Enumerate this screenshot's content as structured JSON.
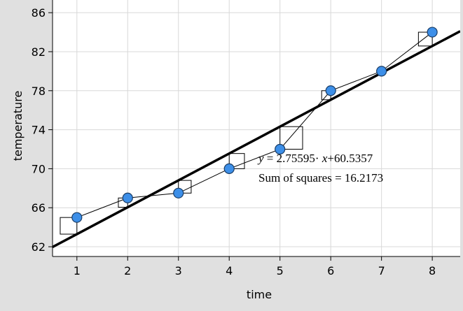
{
  "chart_data": {
    "type": "scatter",
    "x_label": "time",
    "y_label": "temperature",
    "x": [
      1,
      2,
      3,
      4,
      5,
      6,
      7,
      8
    ],
    "values": [
      65,
      67,
      67.5,
      70,
      72,
      78,
      80,
      84
    ],
    "color": "#3d8fe8",
    "xlim": [
      0.52,
      8.55
    ],
    "ylim": [
      61,
      87.3
    ],
    "xticks": [
      1,
      2,
      3,
      4,
      5,
      6,
      7,
      8
    ],
    "yticks": [
      62,
      66,
      70,
      74,
      78,
      82,
      86
    ],
    "grid": true,
    "regression": {
      "lhs_var": "y",
      "equals": " = ",
      "slope": 2.75595,
      "times": "· ",
      "rhs_var": "x",
      "plus": "+",
      "intercept": 60.5357
    },
    "sum_of_squares": {
      "label": "Sum of squares = ",
      "value": 16.2173
    }
  }
}
